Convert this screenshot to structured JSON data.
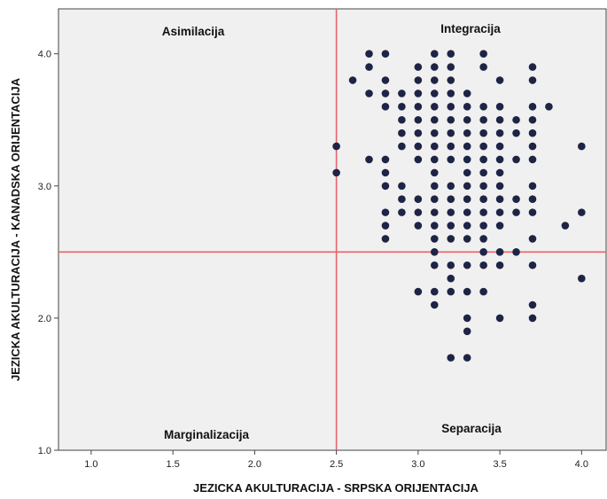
{
  "chart_data": {
    "type": "scatter",
    "xlabel": "JEZICKA AKULTURACIJA - SRPSKA ORIJENTACIJA",
    "ylabel": "JEZICKA AKULTURACIJA - KANADSKA ORIJENTACIJA",
    "xlim": [
      0.8,
      4.15
    ],
    "ylim": [
      1.0,
      4.34
    ],
    "x_ticks": [
      "1.0",
      "1.5",
      "2.0",
      "2.5",
      "3.0",
      "3.5",
      "4.0"
    ],
    "y_ticks": [
      "1.0",
      "2.0",
      "3.0",
      "4.0"
    ],
    "reference_lines": {
      "x": 2.5,
      "y": 2.5,
      "color": "#e8636b"
    },
    "quadrant_labels": {
      "top_left": "Asimilacija",
      "top_right": "Integracija",
      "bottom_left": "Marginalizacija",
      "bottom_right": "Separacija"
    },
    "point_color": "#1e2446",
    "background_color": "#f0f0f0",
    "grid": false,
    "points": [
      [
        2.5,
        3.3
      ],
      [
        2.5,
        3.1
      ],
      [
        2.6,
        3.8
      ],
      [
        2.7,
        4.0
      ],
      [
        2.7,
        3.9
      ],
      [
        2.7,
        3.7
      ],
      [
        2.7,
        3.2
      ],
      [
        2.8,
        4.0
      ],
      [
        2.8,
        3.8
      ],
      [
        2.8,
        3.7
      ],
      [
        2.8,
        3.6
      ],
      [
        2.8,
        3.2
      ],
      [
        2.8,
        3.1
      ],
      [
        2.8,
        3.0
      ],
      [
        2.8,
        2.8
      ],
      [
        2.8,
        2.7
      ],
      [
        2.8,
        2.6
      ],
      [
        2.9,
        3.7
      ],
      [
        2.9,
        3.6
      ],
      [
        2.9,
        3.5
      ],
      [
        2.9,
        3.4
      ],
      [
        2.9,
        3.3
      ],
      [
        2.9,
        3.0
      ],
      [
        2.9,
        2.9
      ],
      [
        2.9,
        2.8
      ],
      [
        3.0,
        3.9
      ],
      [
        3.0,
        3.8
      ],
      [
        3.0,
        3.7
      ],
      [
        3.0,
        3.6
      ],
      [
        3.0,
        3.5
      ],
      [
        3.0,
        3.4
      ],
      [
        3.0,
        3.3
      ],
      [
        3.0,
        3.2
      ],
      [
        3.0,
        2.9
      ],
      [
        3.0,
        2.8
      ],
      [
        3.0,
        2.7
      ],
      [
        3.0,
        2.2
      ],
      [
        3.1,
        4.0
      ],
      [
        3.1,
        3.9
      ],
      [
        3.1,
        3.8
      ],
      [
        3.1,
        3.7
      ],
      [
        3.1,
        3.6
      ],
      [
        3.1,
        3.5
      ],
      [
        3.1,
        3.4
      ],
      [
        3.1,
        3.3
      ],
      [
        3.1,
        3.2
      ],
      [
        3.1,
        3.1
      ],
      [
        3.1,
        3.0
      ],
      [
        3.1,
        2.9
      ],
      [
        3.1,
        2.8
      ],
      [
        3.1,
        2.7
      ],
      [
        3.1,
        2.6
      ],
      [
        3.1,
        2.5
      ],
      [
        3.1,
        2.4
      ],
      [
        3.1,
        2.2
      ],
      [
        3.1,
        2.1
      ],
      [
        3.2,
        4.0
      ],
      [
        3.2,
        3.9
      ],
      [
        3.2,
        3.8
      ],
      [
        3.2,
        3.7
      ],
      [
        3.2,
        3.6
      ],
      [
        3.2,
        3.5
      ],
      [
        3.2,
        3.4
      ],
      [
        3.2,
        3.3
      ],
      [
        3.2,
        3.2
      ],
      [
        3.2,
        3.0
      ],
      [
        3.2,
        2.9
      ],
      [
        3.2,
        2.8
      ],
      [
        3.2,
        2.7
      ],
      [
        3.2,
        2.6
      ],
      [
        3.2,
        2.4
      ],
      [
        3.2,
        2.3
      ],
      [
        3.2,
        2.2
      ],
      [
        3.2,
        1.7
      ],
      [
        3.3,
        3.7
      ],
      [
        3.3,
        3.6
      ],
      [
        3.3,
        3.5
      ],
      [
        3.3,
        3.4
      ],
      [
        3.3,
        3.3
      ],
      [
        3.3,
        3.2
      ],
      [
        3.3,
        3.1
      ],
      [
        3.3,
        3.0
      ],
      [
        3.3,
        2.9
      ],
      [
        3.3,
        2.8
      ],
      [
        3.3,
        2.7
      ],
      [
        3.3,
        2.6
      ],
      [
        3.3,
        2.4
      ],
      [
        3.3,
        2.2
      ],
      [
        3.3,
        2.0
      ],
      [
        3.3,
        1.9
      ],
      [
        3.3,
        1.7
      ],
      [
        3.4,
        4.0
      ],
      [
        3.4,
        3.9
      ],
      [
        3.4,
        3.6
      ],
      [
        3.4,
        3.5
      ],
      [
        3.4,
        3.4
      ],
      [
        3.4,
        3.3
      ],
      [
        3.4,
        3.2
      ],
      [
        3.4,
        3.1
      ],
      [
        3.4,
        3.0
      ],
      [
        3.4,
        2.9
      ],
      [
        3.4,
        2.8
      ],
      [
        3.4,
        2.7
      ],
      [
        3.4,
        2.6
      ],
      [
        3.4,
        2.5
      ],
      [
        3.4,
        2.4
      ],
      [
        3.4,
        2.2
      ],
      [
        3.5,
        3.8
      ],
      [
        3.5,
        3.6
      ],
      [
        3.5,
        3.5
      ],
      [
        3.5,
        3.4
      ],
      [
        3.5,
        3.3
      ],
      [
        3.5,
        3.2
      ],
      [
        3.5,
        3.1
      ],
      [
        3.5,
        3.0
      ],
      [
        3.5,
        2.9
      ],
      [
        3.5,
        2.8
      ],
      [
        3.5,
        2.7
      ],
      [
        3.5,
        2.5
      ],
      [
        3.5,
        2.4
      ],
      [
        3.5,
        2.0
      ],
      [
        3.6,
        3.5
      ],
      [
        3.6,
        3.4
      ],
      [
        3.6,
        3.2
      ],
      [
        3.6,
        2.9
      ],
      [
        3.6,
        2.8
      ],
      [
        3.6,
        2.5
      ],
      [
        3.7,
        3.9
      ],
      [
        3.7,
        3.8
      ],
      [
        3.7,
        3.6
      ],
      [
        3.7,
        3.5
      ],
      [
        3.7,
        3.4
      ],
      [
        3.7,
        3.3
      ],
      [
        3.7,
        3.2
      ],
      [
        3.7,
        3.0
      ],
      [
        3.7,
        2.9
      ],
      [
        3.7,
        2.8
      ],
      [
        3.7,
        2.6
      ],
      [
        3.7,
        2.4
      ],
      [
        3.7,
        2.1
      ],
      [
        3.7,
        2.0
      ],
      [
        3.8,
        3.6
      ],
      [
        3.9,
        2.7
      ],
      [
        4.0,
        3.3
      ],
      [
        4.0,
        2.8
      ],
      [
        4.0,
        2.3
      ]
    ]
  }
}
